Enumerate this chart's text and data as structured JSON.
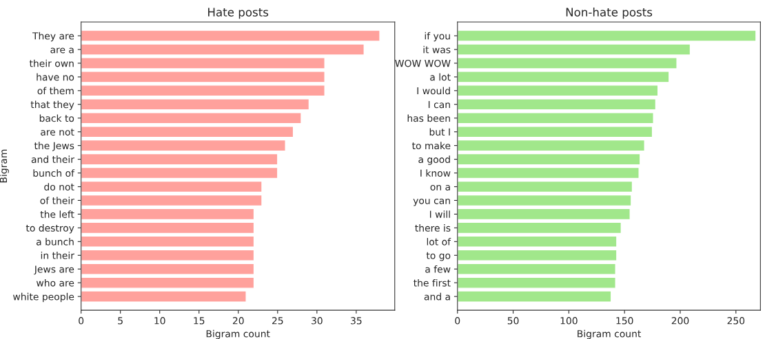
{
  "chart_data": [
    {
      "type": "bar",
      "orientation": "horizontal",
      "title": "Hate posts",
      "xlabel": "Bigram count",
      "ylabel": "Bigram",
      "categories": [
        "They are",
        "are a",
        "their own",
        "have no",
        "of them",
        "that they",
        "back to",
        "are not",
        "the Jews",
        "and their",
        "bunch of",
        "do not",
        "of their",
        "the left",
        "to destroy",
        "a bunch",
        "in their",
        "Jews are",
        "who are",
        "white people"
      ],
      "values": [
        38,
        36,
        31,
        31,
        31,
        29,
        28,
        27,
        26,
        25,
        25,
        23,
        23,
        22,
        22,
        22,
        22,
        22,
        22,
        21
      ],
      "color": "#ffa19c",
      "xlim": [
        0,
        39.9
      ],
      "xticks": [
        0,
        5,
        10,
        15,
        20,
        25,
        30,
        35
      ],
      "grid": false
    },
    {
      "type": "bar",
      "orientation": "horizontal",
      "title": "Non-hate posts",
      "xlabel": "Bigram count",
      "categories": [
        "if you",
        "it was",
        "WOW WOW",
        "a lot",
        "I would",
        "I can",
        "has been",
        "but I",
        "to make",
        "a good",
        "I know",
        "on a",
        "you can",
        "I will",
        "there is",
        "lot of",
        "to go",
        "a few",
        "the first",
        "and a"
      ],
      "values": [
        268,
        209,
        197,
        190,
        180,
        178,
        176,
        175,
        168,
        164,
        163,
        157,
        156,
        155,
        147,
        143,
        143,
        142,
        142,
        138
      ],
      "color": "#a1e78b",
      "xlim": [
        0,
        272
      ],
      "xticks": [
        0,
        50,
        100,
        150,
        200,
        250
      ],
      "grid": false
    }
  ]
}
